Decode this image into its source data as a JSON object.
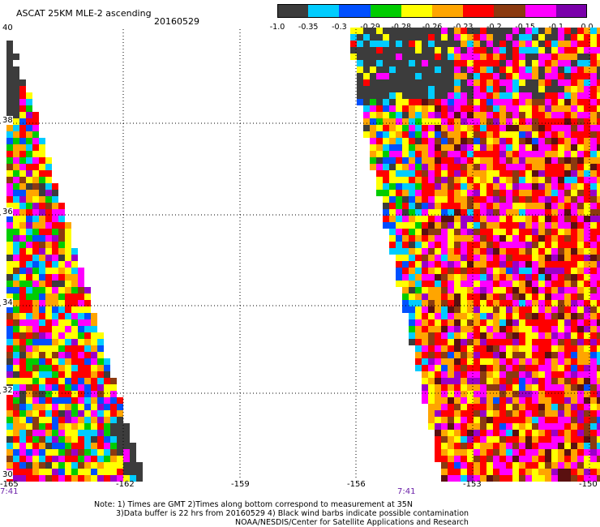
{
  "header": {
    "title": "ASCAT 25KM MLE-2 ascending",
    "date": "20160529"
  },
  "colorbar": {
    "labels": [
      "-1.0",
      "-0.35",
      "-0.3",
      "-0.29",
      "-0.28",
      "-0.26",
      "-0.23",
      "-0.2",
      "-0.15",
      "-0.1",
      "0.0"
    ],
    "colors": [
      "#3c3c3c",
      "#00ccff",
      "#0050ff",
      "#00cc00",
      "#ffff00",
      "#ffa500",
      "#ff0000",
      "#8b3a10",
      "#ff00ff",
      "#7a00aa"
    ]
  },
  "map": {
    "lat_labels": [
      "40",
      "38",
      "36",
      "34",
      "32",
      "30"
    ],
    "lon_labels": [
      "-165",
      "-162",
      "-159",
      "-156",
      "-153",
      "-150"
    ],
    "time_labels": [
      "7:41",
      "7:41"
    ],
    "grid_color": "#000000"
  },
  "footer": {
    "note_line1": "Note: 1) Times are GMT 2)Times along bottom correspond to measurement at 35N",
    "note_line2": "3)Data buffer is 22 hrs from 20160529 4) Black wind barbs indicate possible contamination",
    "note_line3": "NOAA/NESDIS/Center for Satellite Applications and Research"
  }
}
